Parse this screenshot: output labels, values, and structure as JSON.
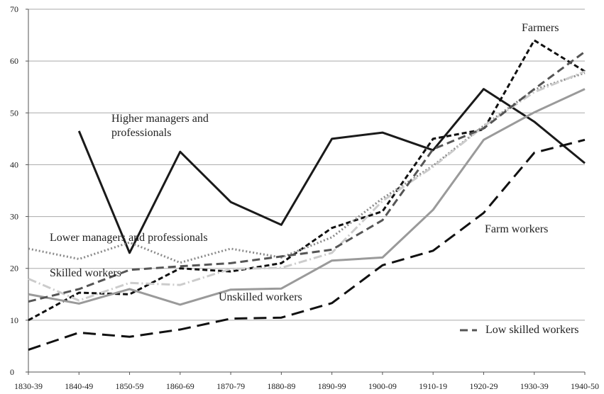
{
  "chart_data": {
    "type": "line",
    "categories": [
      "1830-39",
      "1840-49",
      "1850-59",
      "1860-69",
      "1870-79",
      "1880-89",
      "1890-99",
      "1900-09",
      "1910-19",
      "1920-29",
      "1930-39",
      "1940-50"
    ],
    "ylim": [
      0,
      70
    ],
    "yticks": [
      0,
      10,
      20,
      30,
      40,
      50,
      60,
      70
    ],
    "grid": true,
    "series": [
      {
        "name": "Higher managers and professionals",
        "color": "#1a1a1a",
        "dash": "solid",
        "values": [
          null,
          46.5,
          23,
          42.5,
          32.8,
          28.4,
          45,
          46.2,
          42.8,
          54.6,
          48.3,
          40.3
        ]
      },
      {
        "name": "Farmers",
        "color": "#111111",
        "dash": "short",
        "values": [
          10,
          15.3,
          15,
          20,
          19.4,
          21,
          27.8,
          31,
          45,
          46.8,
          64,
          58
        ]
      },
      {
        "name": "Farm workers",
        "color": "#111111",
        "dash": "long",
        "values": [
          4.3,
          7.6,
          6.8,
          8.2,
          10.3,
          10.5,
          13.3,
          20.6,
          23.4,
          30.7,
          42.3,
          44.8
        ]
      },
      {
        "name": "Unskilled workers",
        "color": "#9a9a9a",
        "dash": "solid",
        "values": [
          15,
          13.2,
          16,
          13,
          15.9,
          16.1,
          21.5,
          22.1,
          31.3,
          44.8,
          50.1,
          54.6
        ]
      },
      {
        "name": "Lower managers and professionals",
        "color": "#8a8a8a",
        "dash": "dot",
        "values": [
          23.8,
          21.8,
          25,
          21.1,
          23.8,
          22.1,
          26,
          33.5,
          39.8,
          47.5,
          54.5,
          57.7
        ]
      },
      {
        "name": "Skilled workers",
        "color": "#cccccc",
        "dash": "dashdot",
        "values": [
          18,
          13.8,
          17.2,
          16.8,
          19.9,
          20.1,
          23,
          33,
          39.6,
          47.4,
          54,
          58
        ]
      },
      {
        "name": "Low skilled workers",
        "color": "#555555",
        "dash": "medium",
        "values": [
          13.6,
          16,
          19.7,
          20.4,
          21,
          22.3,
          23.6,
          29.3,
          43,
          47,
          54.6,
          61.8
        ]
      }
    ]
  }
}
